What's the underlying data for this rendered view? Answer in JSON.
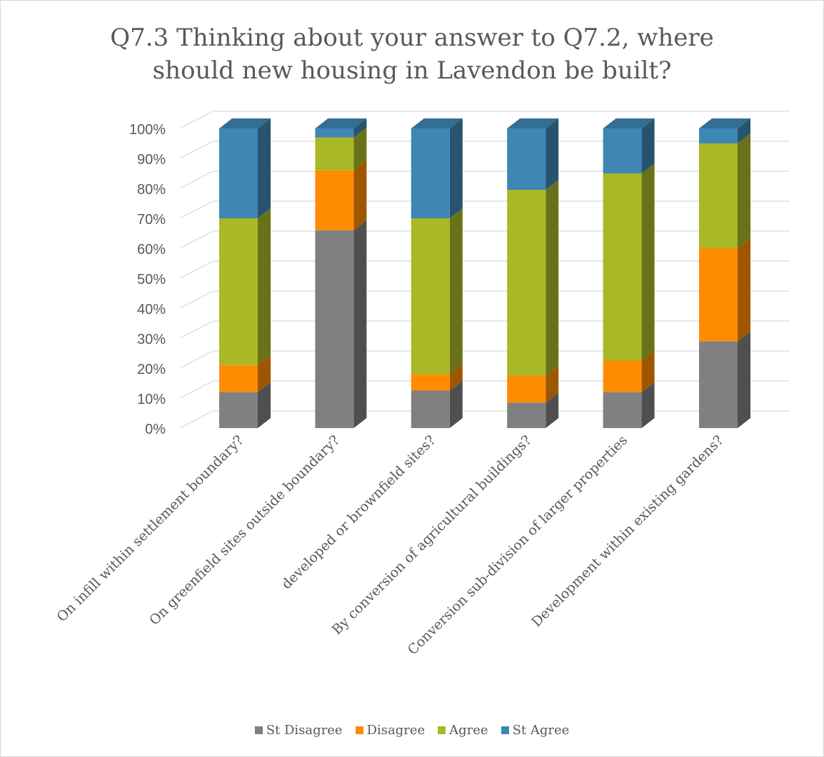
{
  "chart_data": {
    "type": "bar",
    "stacked": true,
    "percent_stacked": true,
    "three_d": true,
    "title": [
      "Q7.3 Thinking about your answer to Q7.2, where",
      "should new housing in Lavendon be built?"
    ],
    "categories": [
      "On infill within settlement boundary?",
      "On greenfield sites outside boundary?",
      "developed or brownfield sites?",
      "By conversion of agricultural buildings?",
      "Conversion sub-division of larger properties",
      "Development within existing gardens?"
    ],
    "series": [
      {
        "name": "St Disagree",
        "color": "#808080",
        "values": [
          12,
          66,
          12.5,
          8.5,
          12,
          29
        ]
      },
      {
        "name": "Disagree",
        "color": "#ff8c00",
        "values": [
          9,
          20,
          5.5,
          9,
          10.5,
          31
        ]
      },
      {
        "name": "Agree",
        "color": "#a9b826",
        "values": [
          49,
          11,
          52,
          62,
          62.5,
          35
        ]
      },
      {
        "name": "St Agree",
        "color": "#3e86b4",
        "values": [
          30,
          3,
          30,
          20.5,
          15,
          5
        ]
      }
    ],
    "ylim": [
      0,
      100
    ],
    "y_ticks": [
      "0%",
      "10%",
      "20%",
      "30%",
      "40%",
      "50%",
      "60%",
      "70%",
      "80%",
      "90%",
      "100%"
    ],
    "grid": true,
    "legend_position": "bottom"
  }
}
